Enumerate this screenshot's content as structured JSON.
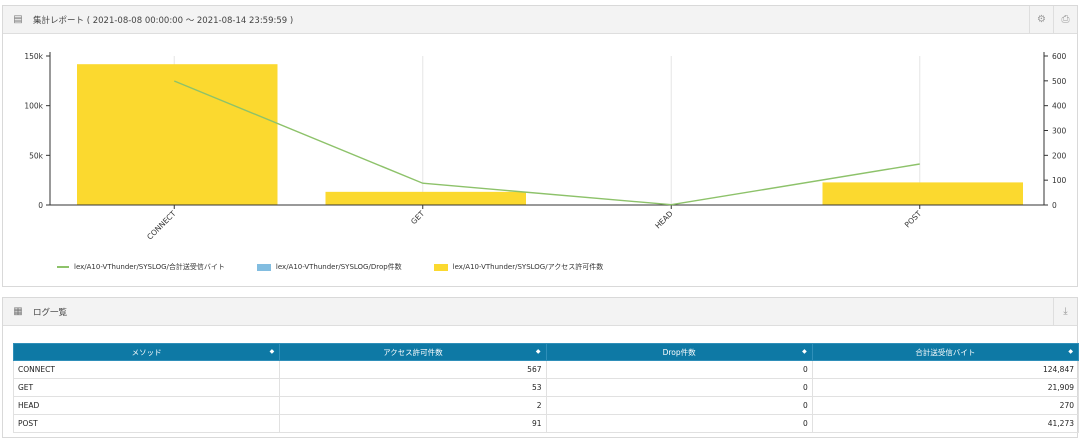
{
  "chart_panel": {
    "title": "集計レポート ( 2021-08-08 00:00:00 ～ 2021-08-14 23:59:59 )"
  },
  "list_panel": {
    "title": "ログ一覧"
  },
  "chart_data": {
    "type": "bar",
    "categories": [
      "CONNECT",
      "GET",
      "HEAD",
      "POST"
    ],
    "series": [
      {
        "name": "lex/A10-VThunder/SYSLOG/合計送受信バイト",
        "kind": "line",
        "axis": "left",
        "values": [
          124847,
          21909,
          270,
          41273
        ],
        "color": "#8dc26a"
      },
      {
        "name": "lex/A10-VThunder/SYSLOG/Drop件数",
        "kind": "bar",
        "axis": "left",
        "values": [
          0,
          0,
          0,
          0
        ],
        "color": "#82bde0"
      },
      {
        "name": "lex/A10-VThunder/SYSLOG/アクセス許可件数",
        "kind": "bar",
        "axis": "right",
        "values": [
          567,
          53,
          2,
          91
        ],
        "color": "#fbd92f"
      }
    ],
    "left_axis": {
      "ticks": [
        "0",
        "50k",
        "100k",
        "150k"
      ],
      "ylim": [
        0,
        150000
      ]
    },
    "right_axis": {
      "ticks": [
        "0",
        "100",
        "200",
        "300",
        "400",
        "500",
        "600"
      ],
      "ylim": [
        0,
        600
      ]
    },
    "legend_position": "bottom-left",
    "grid": true
  },
  "table": {
    "columns": [
      "メソッド",
      "アクセス許可件数",
      "Drop件数",
      "合計送受信バイト"
    ],
    "rows": [
      [
        "CONNECT",
        "567",
        "0",
        "124,847"
      ],
      [
        "GET",
        "53",
        "0",
        "21,909"
      ],
      [
        "HEAD",
        "2",
        "0",
        "270"
      ],
      [
        "POST",
        "91",
        "0",
        "41,273"
      ]
    ]
  }
}
